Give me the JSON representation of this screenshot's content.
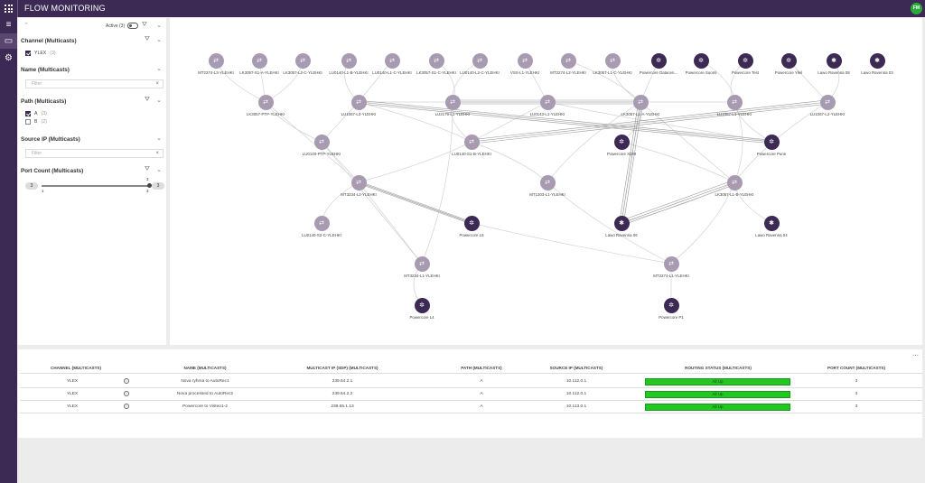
{
  "app": {
    "title": "FLOW MONITORING",
    "user_initials": "FM"
  },
  "rail": {
    "items": [
      "menu-icon",
      "monitor-icon",
      "gear-icon"
    ]
  },
  "filters": {
    "active_label": "Active (3)",
    "sections": {
      "channel": {
        "title": "Channel (Multicasts)",
        "options": [
          {
            "label": "YLEX",
            "count": "(3)",
            "checked": true
          }
        ]
      },
      "name": {
        "title": "Name (Multicasts)",
        "placeholder": "Filter"
      },
      "path": {
        "title": "Path (Multicasts)",
        "options": [
          {
            "label": "A",
            "count": "(3)",
            "checked": true
          },
          {
            "label": "B",
            "count": "(2)",
            "checked": false
          }
        ]
      },
      "source_ip": {
        "title": "Source IP (Multicasts)",
        "placeholder": "Filter"
      },
      "port_count": {
        "title": "Port Count (Multicasts)",
        "min": "3",
        "max": "3",
        "tick_min": "1",
        "tick_max": "3",
        "tick_upper": "3",
        "upper_label": "3"
      }
    }
  },
  "graph": {
    "nodes": [
      {
        "id": "n1",
        "type": "switch",
        "label": "MT2274-L3-YLEHKI"
      },
      {
        "id": "n2",
        "type": "switch",
        "label": "LK3057-S1-A-YLEHKI"
      },
      {
        "id": "n3",
        "type": "switch",
        "label": "LK3057-L2-C-YLEHKI"
      },
      {
        "id": "n4",
        "type": "switch",
        "label": "LU0140-L1-B-YLEHKI"
      },
      {
        "id": "n5",
        "type": "switch",
        "label": "LU0140-L1-C-YLEHKI"
      },
      {
        "id": "n6",
        "type": "switch",
        "label": "LK3057-S1-C-YLEHKI"
      },
      {
        "id": "n7",
        "type": "switch",
        "label": "LU0140-L2-C-YLEHKI"
      },
      {
        "id": "n8",
        "type": "switch",
        "label": "VSS-L1-YLEHKI"
      },
      {
        "id": "n9",
        "type": "switch",
        "label": "MT2274-L2-YLEHKI"
      },
      {
        "id": "n10",
        "type": "switch",
        "label": "LK3057-L1-C-YLEHKI"
      },
      {
        "id": "n11",
        "type": "powercore",
        "label": "Powercore Datacen..."
      },
      {
        "id": "n12",
        "type": "powercore",
        "label": "Powercore Suomi"
      },
      {
        "id": "n13",
        "type": "powercore",
        "label": "Powercore Test"
      },
      {
        "id": "n14",
        "type": "powercore",
        "label": "Powercore Yleil"
      },
      {
        "id": "n15",
        "type": "lawo",
        "label": "Lawo Ravenna 08"
      },
      {
        "id": "n16",
        "type": "lawo",
        "label": "Lawo Ravenna 03"
      },
      {
        "id": "n17",
        "type": "switch",
        "label": "LK3057-PTP-YLEHKI"
      },
      {
        "id": "n18",
        "type": "switch",
        "label": "LU1067-L3-YLEHKI"
      },
      {
        "id": "n19",
        "type": "switch",
        "label": "LU2179-L1-YLEHKI"
      },
      {
        "id": "n20",
        "type": "switch",
        "label": "LU0143-L1-YLEHKI"
      },
      {
        "id": "n21",
        "type": "switch",
        "label": "LK3057-L1-A-YLEHKI"
      },
      {
        "id": "n22",
        "type": "switch",
        "label": "LU1067-L1-YLEHKI"
      },
      {
        "id": "n23",
        "type": "switch",
        "label": "LU1067-L2-YLEHKI"
      },
      {
        "id": "n24",
        "type": "switch",
        "label": "LU0140-PTP-YLEHKI"
      },
      {
        "id": "n25",
        "type": "switch",
        "label": "LU0140-S1-B-YLEHKI"
      },
      {
        "id": "n26",
        "type": "powercore",
        "label": "Powercore XDM"
      },
      {
        "id": "n27",
        "type": "powercore",
        "label": "Powercore Pune"
      },
      {
        "id": "n28",
        "type": "switch",
        "label": "MT3234-L2-YLEHKI"
      },
      {
        "id": "n29",
        "type": "switch",
        "label": "MT1303-L1-YLEHKI"
      },
      {
        "id": "n30",
        "type": "switch",
        "label": "LK3057-L1-B-YLEHKI"
      },
      {
        "id": "n31",
        "type": "switch",
        "label": "LU0140-S2-C-YLEHKI"
      },
      {
        "id": "n32",
        "type": "powercore",
        "label": "Powercore L5"
      },
      {
        "id": "n33",
        "type": "lawo",
        "label": "Lawo Ravenna 06"
      },
      {
        "id": "n34",
        "type": "lawo",
        "label": "Lawo Ravenna 04"
      },
      {
        "id": "n35",
        "type": "switch",
        "label": "MT3234-L1-YLEHKI"
      },
      {
        "id": "n36",
        "type": "switch",
        "label": "MT2274-L1-YLEHKI"
      },
      {
        "id": "n37",
        "type": "powercore",
        "label": "Powercore L4"
      },
      {
        "id": "n38",
        "type": "powercore",
        "label": "Powercore P1"
      }
    ]
  },
  "table": {
    "columns": [
      "CHANNEL (MULTICASTS)",
      "NAME (MULTICASTS)",
      "MULTICAST IP (SDP) (MULTICASTS)",
      "PATH (MULTICASTS)",
      "SOURCE IP (MULTICASTS)",
      "ROUTING STATUS (MULTICASTS)",
      "PORT COUNT (MULTICASTS)"
    ],
    "rows": [
      {
        "channel": "YLEX",
        "name": "Nova ryhma to AutoRec1",
        "mcast": "239.64.2.1",
        "path": "A",
        "source": "10.112.0.1",
        "status": "All Up",
        "ports": "3"
      },
      {
        "channel": "YLEX",
        "name": "Nova processed to AutoRec2",
        "mcast": "239.64.2.2",
        "path": "A",
        "source": "10.112.0.1",
        "status": "All Up",
        "ports": "3"
      },
      {
        "channel": "YLEX",
        "name": "Powercore to Visteo1-2",
        "mcast": "239.65.1.13",
        "path": "A",
        "source": "10.113.0.1",
        "status": "All Up",
        "ports": "3"
      }
    ]
  },
  "colors": {
    "brand": "#3d2a54",
    "switch_node": "#a89bb1",
    "status_up": "#22c722",
    "avatar": "#2aaa3c"
  }
}
